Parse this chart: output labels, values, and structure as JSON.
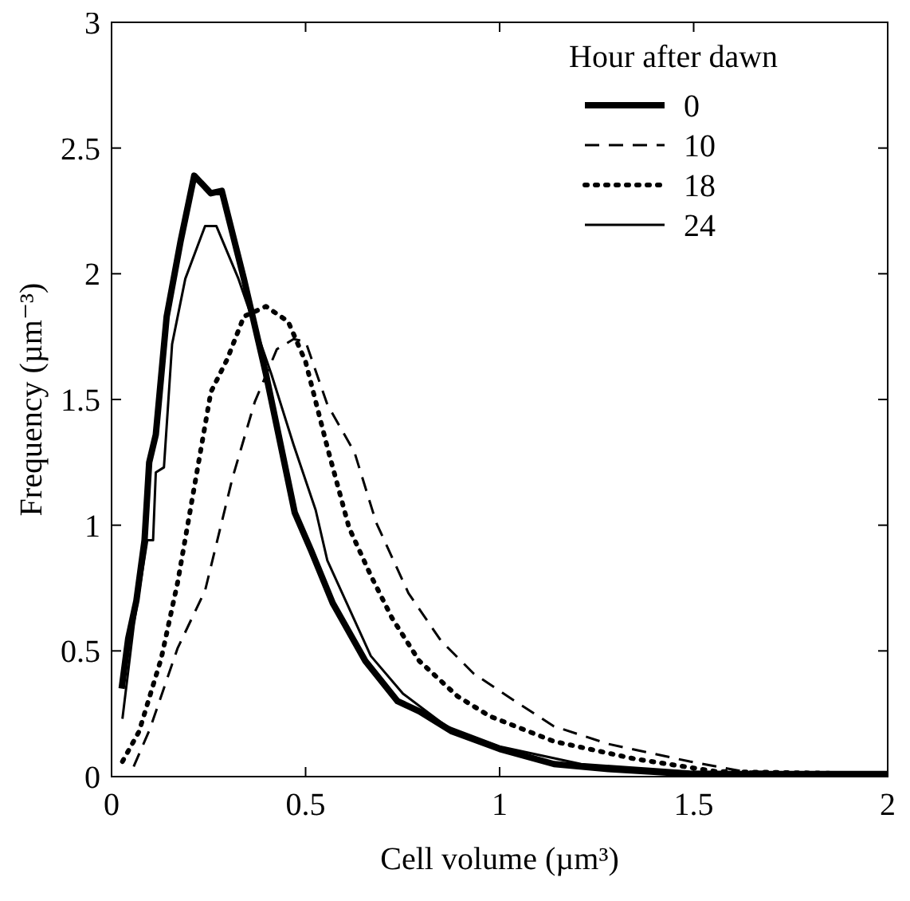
{
  "chart_data": {
    "type": "line",
    "xlabel": "Cell volume (µm³)",
    "ylabel": "Frequency (µm⁻³)",
    "legend_title": "Hour after dawn",
    "legend": "top right",
    "xlim": [
      0,
      2
    ],
    "ylim": [
      0,
      3
    ],
    "xticks": [
      0,
      0.5,
      1,
      1.5,
      2
    ],
    "yticks": [
      0,
      0.5,
      1,
      1.5,
      2,
      2.5,
      3
    ],
    "grid": false,
    "series": [
      {
        "name": "0",
        "color": "#000000",
        "line_style": "solid",
        "x": [
          0.026,
          0.043,
          0.064,
          0.085,
          0.097,
          0.114,
          0.142,
          0.178,
          0.213,
          0.256,
          0.284,
          0.341,
          0.398,
          0.472,
          0.514,
          0.57,
          0.654,
          0.737,
          0.793,
          0.877,
          1.0,
          1.14,
          1.28,
          1.49,
          2.0
        ],
        "values": [
          0.35,
          0.55,
          0.7,
          0.94,
          1.25,
          1.36,
          1.83,
          2.13,
          2.39,
          2.32,
          2.33,
          1.98,
          1.6,
          1.05,
          0.9,
          0.69,
          0.46,
          0.3,
          0.26,
          0.18,
          0.11,
          0.05,
          0.03,
          0.01,
          0.01
        ]
      },
      {
        "name": "10",
        "color": "#000000",
        "line_style": "dashed",
        "x": [
          0.057,
          0.099,
          0.17,
          0.241,
          0.312,
          0.369,
          0.426,
          0.469,
          0.5,
          0.556,
          0.626,
          0.682,
          0.765,
          0.849,
          0.933,
          1.03,
          1.14,
          1.28,
          1.49,
          1.63,
          2.0
        ],
        "values": [
          0.04,
          0.19,
          0.51,
          0.74,
          1.19,
          1.49,
          1.7,
          1.74,
          1.73,
          1.48,
          1.29,
          1.01,
          0.73,
          0.54,
          0.41,
          0.31,
          0.2,
          0.13,
          0.06,
          0.02,
          0.01
        ]
      },
      {
        "name": "18",
        "color": "#000000",
        "line_style": "dotted",
        "x": [
          0.028,
          0.071,
          0.128,
          0.17,
          0.213,
          0.256,
          0.298,
          0.341,
          0.398,
          0.455,
          0.5,
          0.556,
          0.612,
          0.668,
          0.723,
          0.793,
          0.891,
          0.975,
          1.14,
          1.35,
          1.56,
          2.0
        ],
        "values": [
          0.06,
          0.18,
          0.47,
          0.77,
          1.15,
          1.53,
          1.66,
          1.83,
          1.87,
          1.81,
          1.65,
          1.31,
          0.99,
          0.8,
          0.63,
          0.46,
          0.32,
          0.24,
          0.14,
          0.07,
          0.02,
          0.01
        ]
      },
      {
        "name": "24",
        "color": "#000000",
        "line_style": "solid",
        "x": [
          0.028,
          0.057,
          0.092,
          0.107,
          0.114,
          0.135,
          0.156,
          0.19,
          0.241,
          0.27,
          0.327,
          0.412,
          0.469,
          0.526,
          0.556,
          0.668,
          0.751,
          0.863,
          1.0,
          1.21,
          1.49,
          2.0
        ],
        "values": [
          0.23,
          0.6,
          0.94,
          0.94,
          1.21,
          1.23,
          1.72,
          1.98,
          2.19,
          2.19,
          1.98,
          1.6,
          1.32,
          1.06,
          0.86,
          0.48,
          0.33,
          0.2,
          0.12,
          0.05,
          0.02,
          0.01
        ]
      }
    ]
  }
}
